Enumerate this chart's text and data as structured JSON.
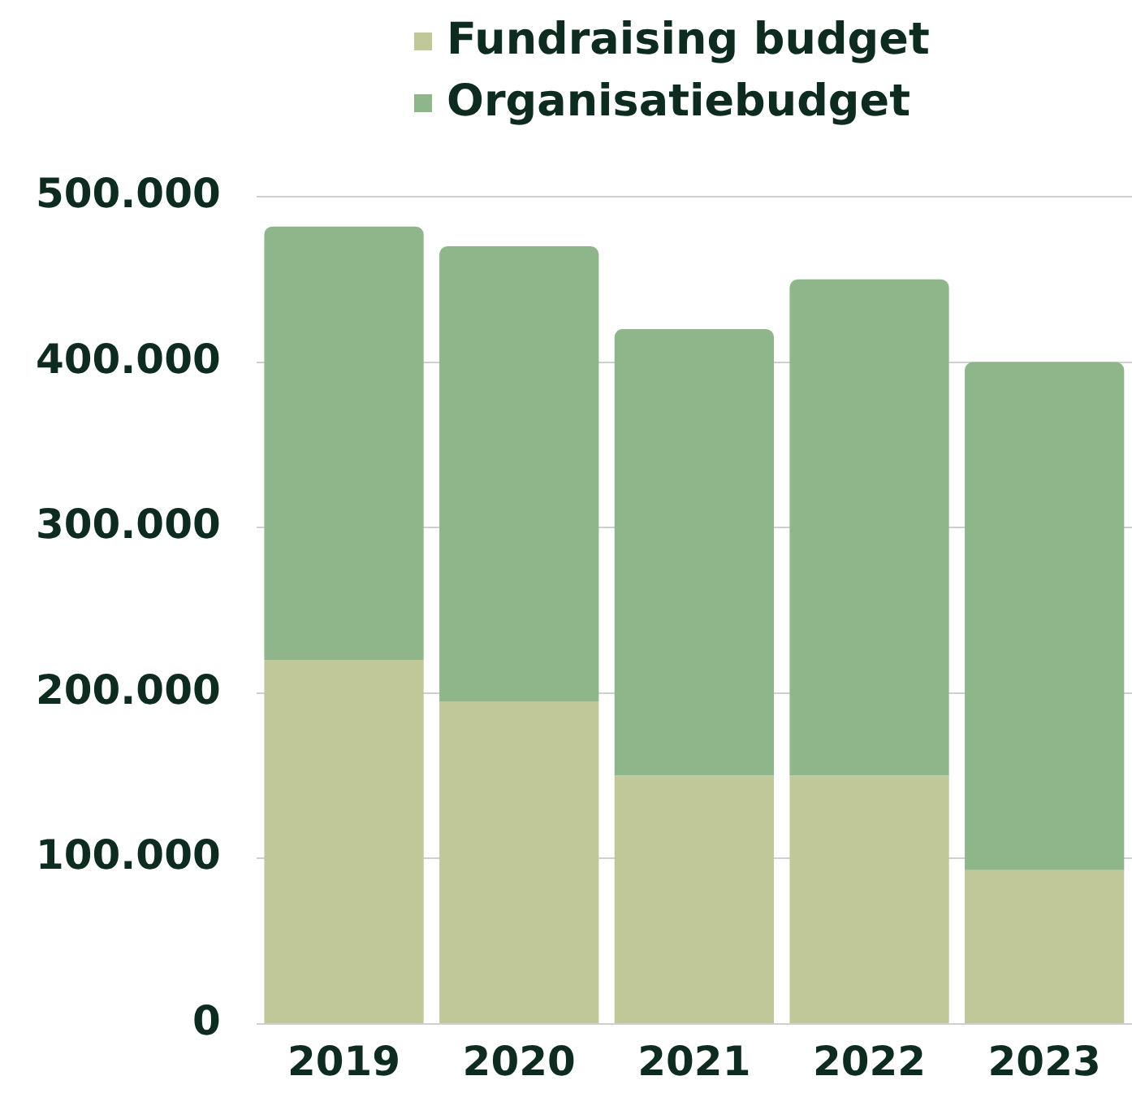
{
  "chart_data": {
    "type": "bar",
    "stacked": true,
    "categories": [
      "2019",
      "2020",
      "2021",
      "2022",
      "2023"
    ],
    "series": [
      {
        "name": "Fundraising budget",
        "color": "#c0c799",
        "values": [
          220000,
          195000,
          150000,
          150000,
          93000
        ]
      },
      {
        "name": "Organisatiebudget",
        "color": "#8fb58a",
        "values": [
          262000,
          275000,
          270000,
          300000,
          307000
        ]
      }
    ],
    "ylim": [
      0,
      500000
    ],
    "yticks": [
      {
        "value": 0,
        "label": "0"
      },
      {
        "value": 100000,
        "label": "100.000"
      },
      {
        "value": 200000,
        "label": "200.000"
      },
      {
        "value": 300000,
        "label": "300.000"
      },
      {
        "value": 400000,
        "label": "400.000"
      },
      {
        "value": 500000,
        "label": "500.000"
      }
    ],
    "grid": "y",
    "legend": "top"
  }
}
